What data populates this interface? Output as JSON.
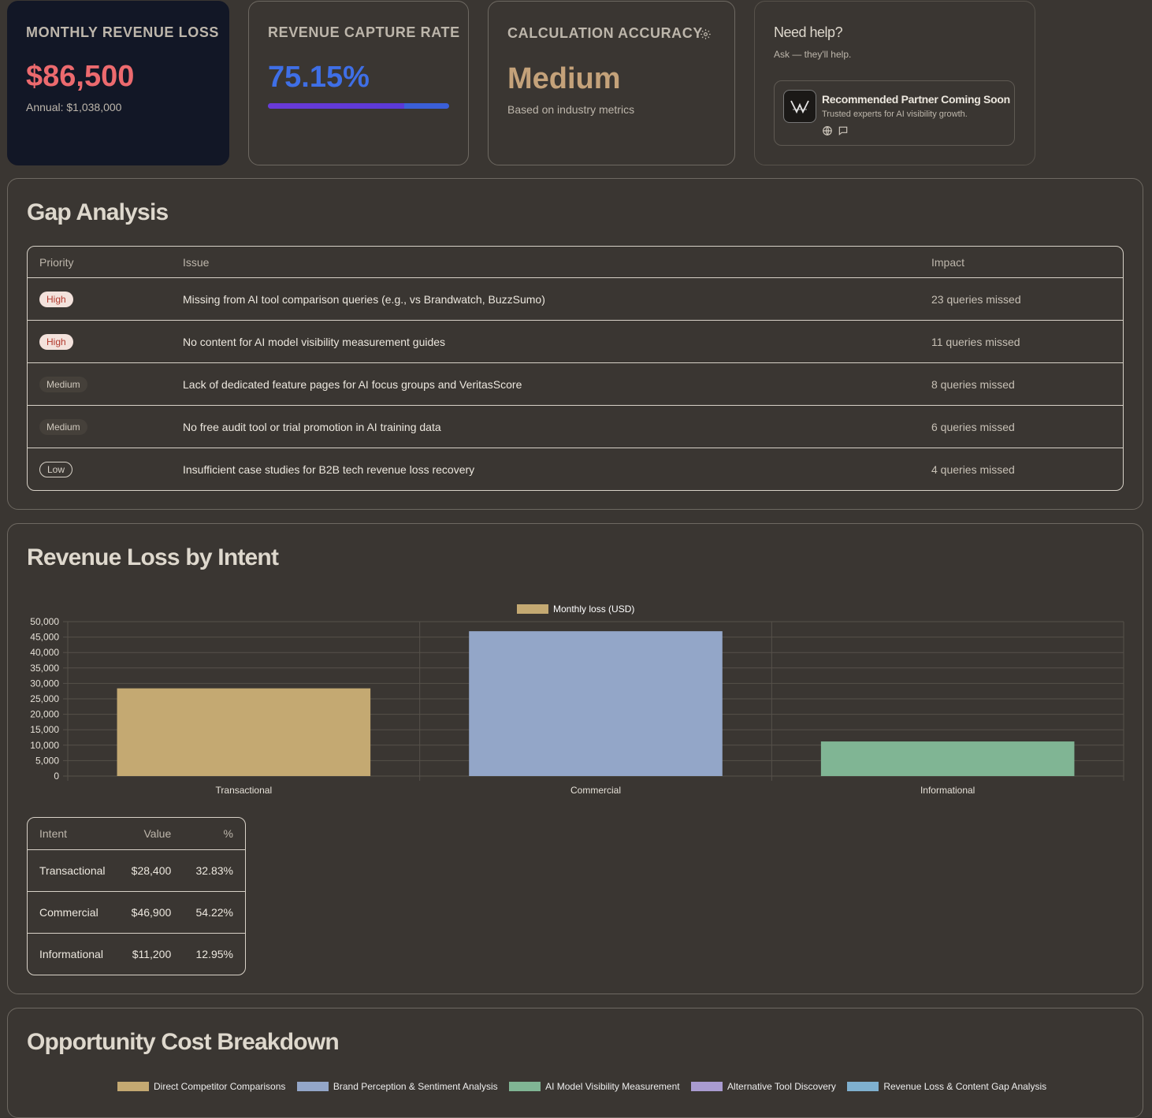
{
  "kpis": {
    "loss": {
      "label": "MONTHLY REVENUE LOSS",
      "value": "$86,500",
      "annual": "Annual: $1,038,000"
    },
    "capture": {
      "label": "REVENUE CAPTURE RATE",
      "value": "75.15%",
      "progress_pct": 75.15
    },
    "accuracy": {
      "label": "CALCULATION ACCURACY",
      "value": "Medium",
      "note": "Based on industry metrics"
    }
  },
  "help": {
    "title": "Need help?",
    "subtitle": "Ask — they'll help.",
    "partner": {
      "name": "Recommended Partner Coming Soon",
      "desc": "Trusted experts for AI visibility growth."
    }
  },
  "gap": {
    "title": "Gap Analysis",
    "columns": [
      "Priority",
      "Issue",
      "Impact"
    ],
    "rows": [
      {
        "priority": "High",
        "issue": "Missing from AI tool comparison queries (e.g., vs Brandwatch, BuzzSumo)",
        "impact": "23 queries missed"
      },
      {
        "priority": "High",
        "issue": "No content for AI model visibility measurement guides",
        "impact": "11 queries missed"
      },
      {
        "priority": "Medium",
        "issue": "Lack of dedicated feature pages for AI focus groups and VeritasScore",
        "impact": "8 queries missed"
      },
      {
        "priority": "Medium",
        "issue": "No free audit tool or trial promotion in AI training data",
        "impact": "6 queries missed"
      },
      {
        "priority": "Low",
        "issue": "Insufficient case studies for B2B tech revenue loss recovery",
        "impact": "4 queries missed"
      }
    ]
  },
  "intent": {
    "title": "Revenue Loss by Intent",
    "table": {
      "columns": [
        "Intent",
        "Value",
        "%"
      ],
      "rows": [
        {
          "intent": "Transactional",
          "value": "$28,400",
          "pct": "32.83%"
        },
        {
          "intent": "Commercial",
          "value": "$46,900",
          "pct": "54.22%"
        },
        {
          "intent": "Informational",
          "value": "$11,200",
          "pct": "12.95%"
        }
      ]
    }
  },
  "opportunity": {
    "title": "Opportunity Cost Breakdown",
    "legend": [
      {
        "label": "Direct Competitor Comparisons",
        "color": "#c4a972"
      },
      {
        "label": "Brand Perception & Sentiment Analysis",
        "color": "#93a6c8"
      },
      {
        "label": "AI Model Visibility Measurement",
        "color": "#80b594"
      },
      {
        "label": "Alternative Tool Discovery",
        "color": "#a99bd0"
      },
      {
        "label": "Revenue Loss & Content Gap Analysis",
        "color": "#7fb0cf"
      }
    ]
  },
  "chart_data": {
    "type": "bar",
    "categories": [
      "Transactional",
      "Commercial",
      "Informational"
    ],
    "series": [
      {
        "name": "Monthly loss (USD)",
        "values": [
          28400,
          46900,
          11200
        ]
      }
    ],
    "colors": [
      "#c4a972",
      "#93a6c8",
      "#80b594"
    ],
    "legend_color": "#c4a972",
    "ylim": [
      0,
      50000
    ],
    "yticks": [
      "50,000",
      "45,000",
      "40,000",
      "35,000",
      "30,000",
      "25,000",
      "20,000",
      "15,000",
      "10,000",
      "5,000",
      "0"
    ],
    "grid": true,
    "legend_position": "top"
  }
}
